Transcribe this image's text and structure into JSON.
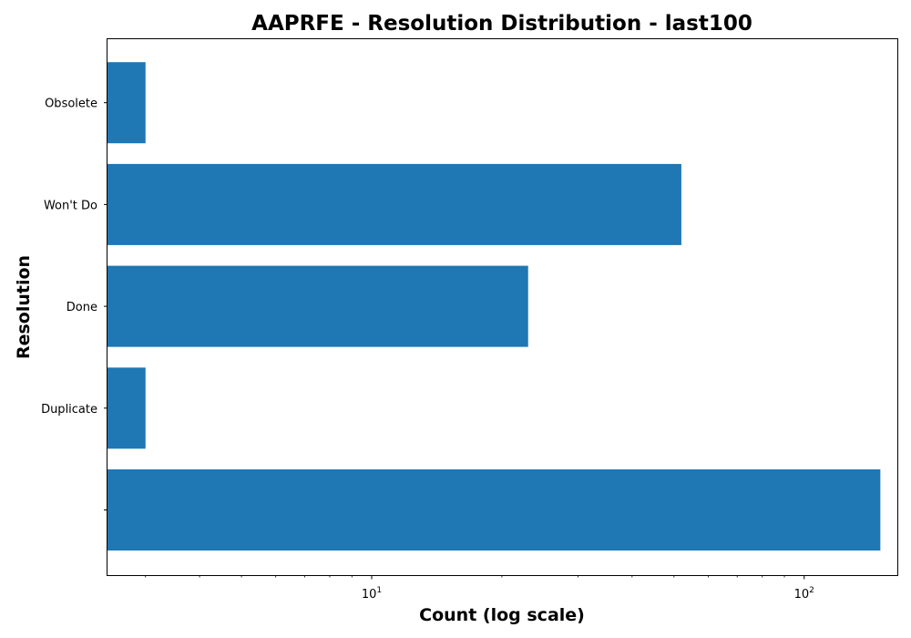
{
  "chart_data": {
    "type": "bar",
    "orientation": "horizontal",
    "title": "AAPRFE - Resolution Distribution - last100",
    "xlabel": "Count (log scale)",
    "ylabel": "Resolution",
    "x_scale": "log",
    "xlim": [
      2.45,
      165
    ],
    "grid": false,
    "categories": [
      "",
      "Duplicate",
      "Done",
      "Won't Do",
      "Obsolete"
    ],
    "values": [
      150,
      3,
      23,
      52,
      3
    ],
    "x_ticks": [
      {
        "base": "10",
        "exp": "1",
        "value": 10
      },
      {
        "base": "10",
        "exp": "2",
        "value": 100
      }
    ],
    "colors": {
      "bar": "#1f77b4",
      "axes": "#000000"
    }
  }
}
